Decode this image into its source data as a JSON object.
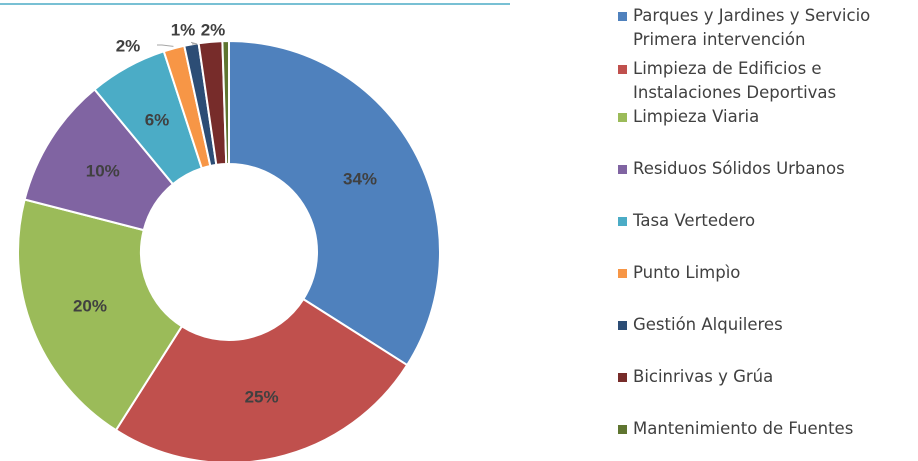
{
  "chart_data": {
    "type": "donut",
    "categories": [
      "Parques y Jardines y Servicio Primera intervención",
      "Limpieza de Edificios e Instalaciones Deportivas",
      "Limpieza Viaria",
      "Residuos Sólidos Urbanos",
      "Tasa Vertedero",
      "Punto Limpìo",
      "Gestión Alquileres",
      "Bicinrivas y Grúa",
      "Mantenimiento de Fuentes"
    ],
    "values": [
      34,
      25,
      20,
      10,
      6,
      1.6,
      1.1,
      1.8,
      0.5
    ],
    "value_labels": [
      "34%",
      "25%",
      "20%",
      "10%",
      "6%",
      "2%",
      "1%",
      "2%",
      null
    ],
    "colors": [
      "#4f81bd",
      "#c0504d",
      "#9bbb59",
      "#8064a2",
      "#4bacc6",
      "#f79646",
      "#2c4d75",
      "#772c2a",
      "#5f7530"
    ],
    "legend": "right"
  }
}
